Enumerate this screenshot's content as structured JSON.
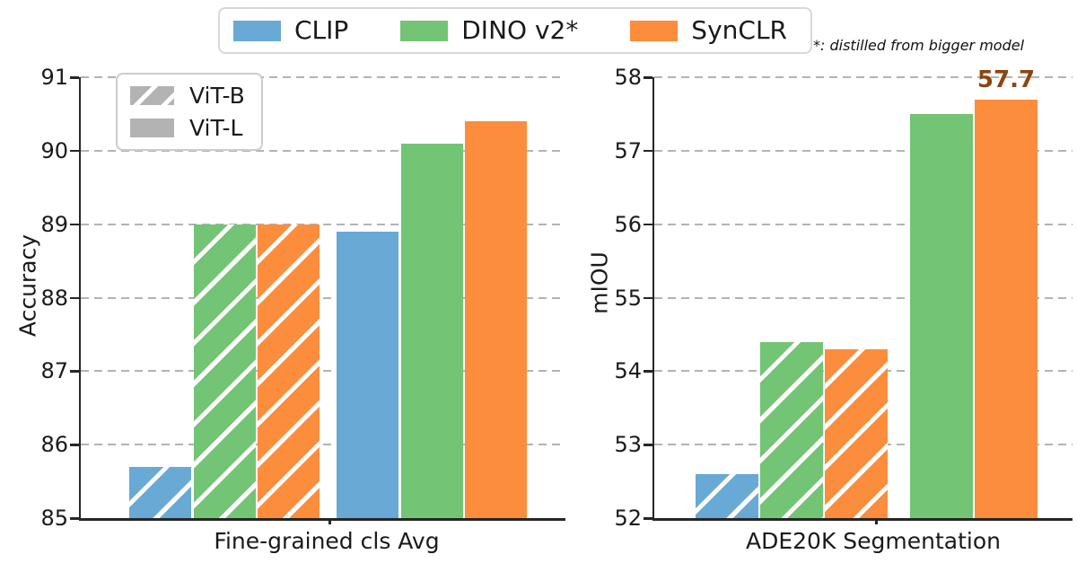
{
  "legend": {
    "items": [
      {
        "label": "CLIP"
      },
      {
        "label": "DINO v2*"
      },
      {
        "label": "SynCLR"
      }
    ],
    "note": "*: distilled from bigger model"
  },
  "arch_legend": {
    "items": [
      {
        "label": "ViT-B",
        "hatched": true
      },
      {
        "label": "ViT-L",
        "hatched": false
      }
    ]
  },
  "colors": {
    "series": [
      "#69a9d5",
      "#73c474",
      "#fc8d3d"
    ],
    "arch_swatch": "#b3b3b3",
    "grid": "#b3b3b3",
    "axis": "#262626",
    "annotation": "#8b4513"
  },
  "chart_data": [
    {
      "type": "bar",
      "panel": "left",
      "title": "",
      "xlabel": "Fine-grained cls Avg",
      "ylabel": "Accuracy",
      "ylim": [
        85,
        91
      ],
      "yticks": [
        85,
        86,
        87,
        88,
        89,
        90,
        91
      ],
      "grid": "dashed horizontal",
      "series_names": [
        "CLIP",
        "DINO v2*",
        "SynCLR"
      ],
      "groups": [
        {
          "name": "ViT-B",
          "hatched": true,
          "values": [
            85.7,
            89.0,
            89.0
          ]
        },
        {
          "name": "ViT-L",
          "hatched": false,
          "values": [
            88.9,
            90.1,
            90.4
          ]
        }
      ]
    },
    {
      "type": "bar",
      "panel": "right",
      "title": "",
      "xlabel": "ADE20K Segmentation",
      "ylabel": "mIOU",
      "ylim": [
        52,
        58
      ],
      "yticks": [
        52,
        53,
        54,
        55,
        56,
        57,
        58
      ],
      "grid": "dashed horizontal",
      "series_names": [
        "CLIP",
        "DINO v2*",
        "SynCLR"
      ],
      "groups": [
        {
          "name": "ViT-B",
          "hatched": true,
          "values": [
            52.6,
            54.4,
            54.3
          ]
        },
        {
          "name": "ViT-L",
          "hatched": false,
          "values": [
            null,
            57.5,
            57.7
          ]
        }
      ],
      "annotation": {
        "text": "57.7",
        "value": 57.7,
        "color": "#8b4513"
      }
    }
  ]
}
